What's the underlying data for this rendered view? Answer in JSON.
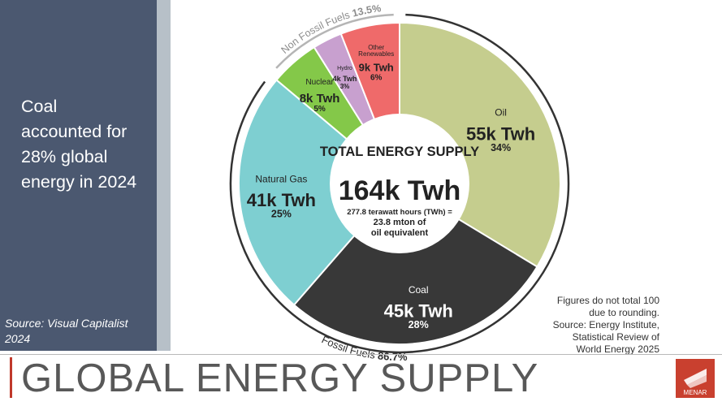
{
  "sidebar": {
    "headline": "Coal\naccounted for\n28% global\nenergy in 2024",
    "source": "Source: Visual Capitalist\n2024"
  },
  "page_title": "GLOBAL ENERGY SUPPLY",
  "logo_text": "MENAR",
  "note": "Figures do not total 100\ndue to rounding.\nSource: Energy Institute,\nStatistical Review of\nWorld Energy 2025",
  "colors": {
    "oil": "#c5cd8e",
    "coal": "#383838",
    "natural_gas": "#7ecfd1",
    "nuclear": "#84c849",
    "hydro": "#c8a0cf",
    "other_renewables": "#ef6a6a",
    "sidebar": "#4b5870",
    "accent": "#c9402f"
  },
  "chart_data": {
    "type": "pie",
    "title": "TOTAL ENERGY SUPPLY",
    "total_value": "164k Twh",
    "total_note": [
      "277.8 terawatt hours (TWh) =",
      "23.8 mton of",
      "oil equivalent"
    ],
    "slices": [
      {
        "name": "Oil",
        "display": "55k Twh",
        "percent_label": "34%",
        "percent": 34
      },
      {
        "name": "Coal",
        "display": "45k Twh",
        "percent_label": "28%",
        "percent": 28
      },
      {
        "name": "Natural Gas",
        "display": "41k Twh",
        "percent_label": "25%",
        "percent": 25
      },
      {
        "name": "Nuclear",
        "display": "8k Twh",
        "percent_label": "5%",
        "percent": 5
      },
      {
        "name": "Hydro",
        "display": "4k Twh",
        "percent_label": "3%",
        "percent": 3
      },
      {
        "name": "Other\nRenewables",
        "display": "9k Twh",
        "percent_label": "6%",
        "percent": 6
      }
    ],
    "groups": [
      {
        "label": "Fossil Fuels",
        "value_label": "86.7%",
        "value": 86.7
      },
      {
        "label": "Non Fossil Fuels",
        "value_label": "13.5%",
        "value": 13.5
      }
    ]
  }
}
